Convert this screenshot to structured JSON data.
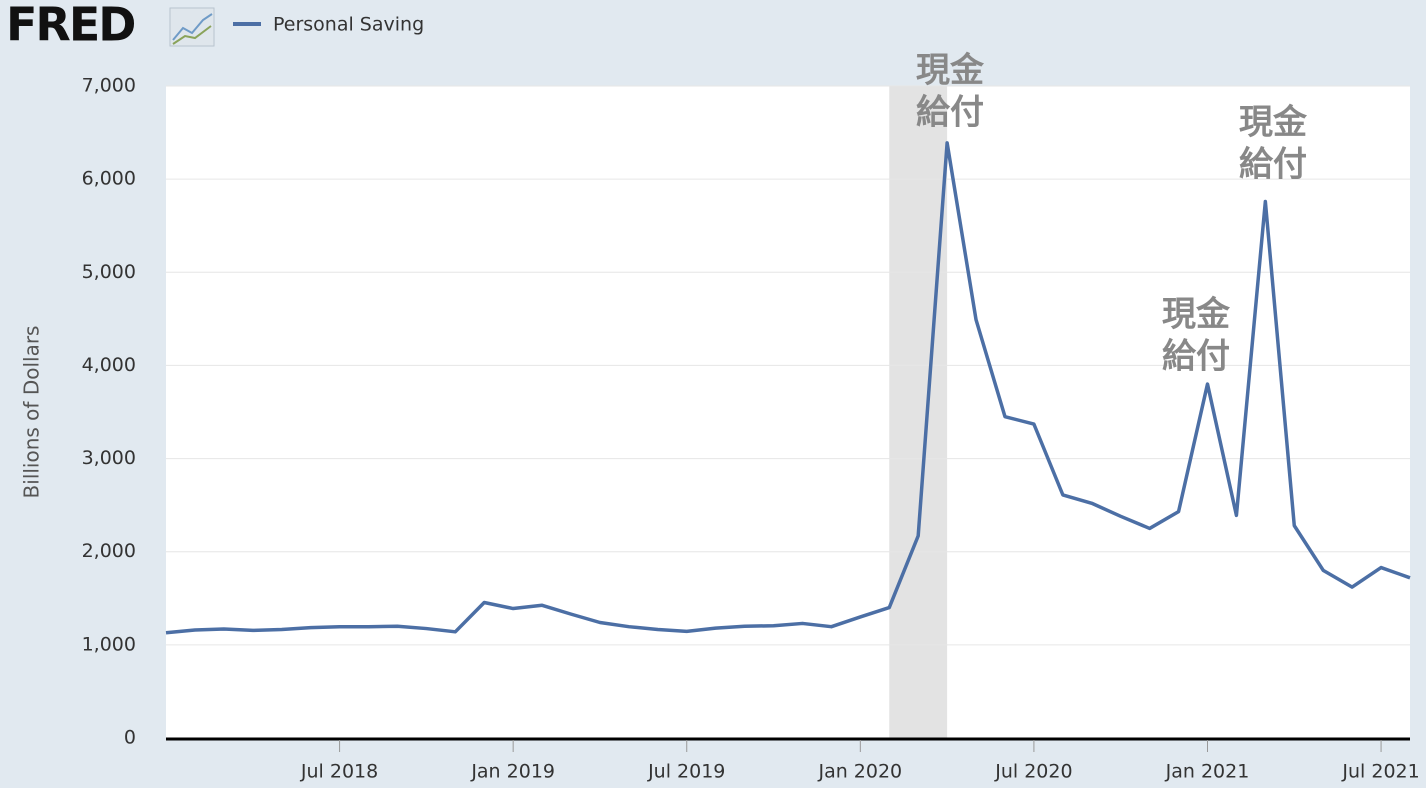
{
  "logo": "FRED",
  "chart_data": {
    "type": "line",
    "y_label": "Billions of Dollars",
    "x": [
      "2018-01",
      "2018-02",
      "2018-03",
      "2018-04",
      "2018-05",
      "2018-06",
      "2018-07",
      "2018-08",
      "2018-09",
      "2018-10",
      "2018-11",
      "2018-12",
      "2019-01",
      "2019-02",
      "2019-03",
      "2019-04",
      "2019-05",
      "2019-06",
      "2019-07",
      "2019-08",
      "2019-09",
      "2019-10",
      "2019-11",
      "2019-12",
      "2020-01",
      "2020-02",
      "2020-03",
      "2020-04",
      "2020-05",
      "2020-06",
      "2020-07",
      "2020-08",
      "2020-09",
      "2020-10",
      "2020-11",
      "2020-12",
      "2021-01",
      "2021-02",
      "2021-03",
      "2021-04",
      "2021-05",
      "2021-06",
      "2021-07",
      "2021-08"
    ],
    "series": [
      {
        "name": "Personal Saving",
        "color": "#4c6fa5",
        "values": [
          1130,
          1160,
          1170,
          1155,
          1165,
          1185,
          1195,
          1195,
          1200,
          1175,
          1140,
          1455,
          1390,
          1425,
          1330,
          1240,
          1195,
          1165,
          1145,
          1180,
          1200,
          1205,
          1230,
          1195,
          1300,
          1400,
          2170,
          6390,
          4490,
          3450,
          3370,
          2610,
          2520,
          2380,
          2250,
          2430,
          3800,
          2390,
          5760,
          2280,
          1800,
          1620,
          1830,
          1720
        ]
      }
    ],
    "ylim": [
      0,
      7000
    ],
    "yticks": [
      0,
      {
        "value": 1000,
        "label": "1,000"
      },
      {
        "value": 2000,
        "label": "2,000"
      },
      {
        "value": 3000,
        "label": "3,000"
      },
      {
        "value": 4000,
        "label": "4,000"
      },
      {
        "value": 5000,
        "label": "5,000"
      },
      {
        "value": 6000,
        "label": "6,000"
      },
      {
        "value": 7000,
        "label": "7,000"
      }
    ],
    "xticks": [
      {
        "value": "2018-07",
        "label": "Jul 2018"
      },
      {
        "value": "2019-01",
        "label": "Jan 2019"
      },
      {
        "value": "2019-07",
        "label": "Jul 2019"
      },
      {
        "value": "2020-01",
        "label": "Jan 2020"
      },
      {
        "value": "2020-07",
        "label": "Jul 2020"
      },
      {
        "value": "2021-01",
        "label": "Jan 2021"
      },
      {
        "value": "2021-07",
        "label": "Jul 2021"
      }
    ],
    "recession": [
      "2020-02",
      "2020-04"
    ],
    "grid": true,
    "annotations": [
      {
        "lines": [
          "現金",
          "給付"
        ]
      },
      {
        "lines": [
          "現金",
          "給付"
        ]
      },
      {
        "lines": [
          "現金",
          "給付"
        ]
      }
    ]
  }
}
